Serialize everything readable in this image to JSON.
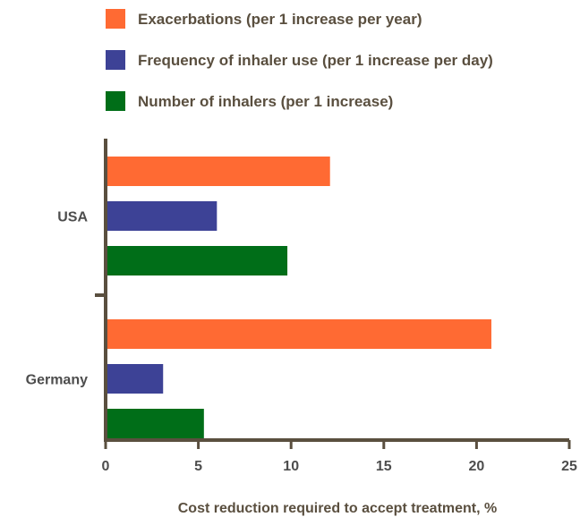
{
  "chart_data": {
    "type": "bar",
    "orientation": "horizontal",
    "categories": [
      "USA",
      "Germany"
    ],
    "series": [
      {
        "name": "Exacerbations (per 1 increase per year)",
        "color": "#ff6a33",
        "values": [
          12.1,
          20.8
        ]
      },
      {
        "name": "Frequency of inhaler use (per 1 increase per day)",
        "color": "#3d4296",
        "values": [
          6.0,
          3.1
        ]
      },
      {
        "name": "Number of inhalers (per 1 increase)",
        "color": "#006e18",
        "values": [
          9.8,
          5.3
        ]
      }
    ],
    "xlabel": "Cost reduction required to accept treatment, %",
    "ylabel": "",
    "xlim": [
      0,
      25
    ],
    "xticks": [
      "0",
      "5",
      "10",
      "15",
      "20",
      "25"
    ],
    "legend_position": "top",
    "axis_color": "#5a4f3f",
    "grid": false
  }
}
